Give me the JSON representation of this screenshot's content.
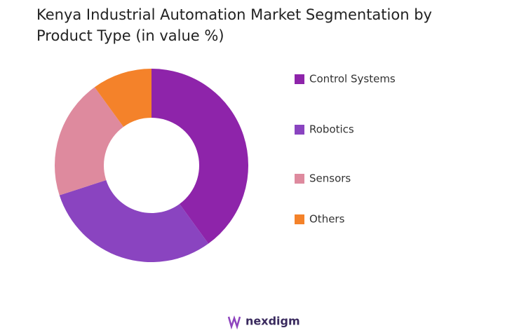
{
  "chart_data": {
    "type": "pie",
    "title": "Kenya Industrial Automation Market Segmentation by Product Type (in value %)",
    "categories": [
      "Control Systems",
      "Robotics",
      "Sensors",
      "Others"
    ],
    "values": [
      40,
      30,
      20,
      10
    ],
    "colors": [
      "#8e24aa",
      "#8a44c0",
      "#de8a9e",
      "#f4822a"
    ],
    "legend": "right"
  },
  "footer": {
    "logo": "nexdigm"
  }
}
